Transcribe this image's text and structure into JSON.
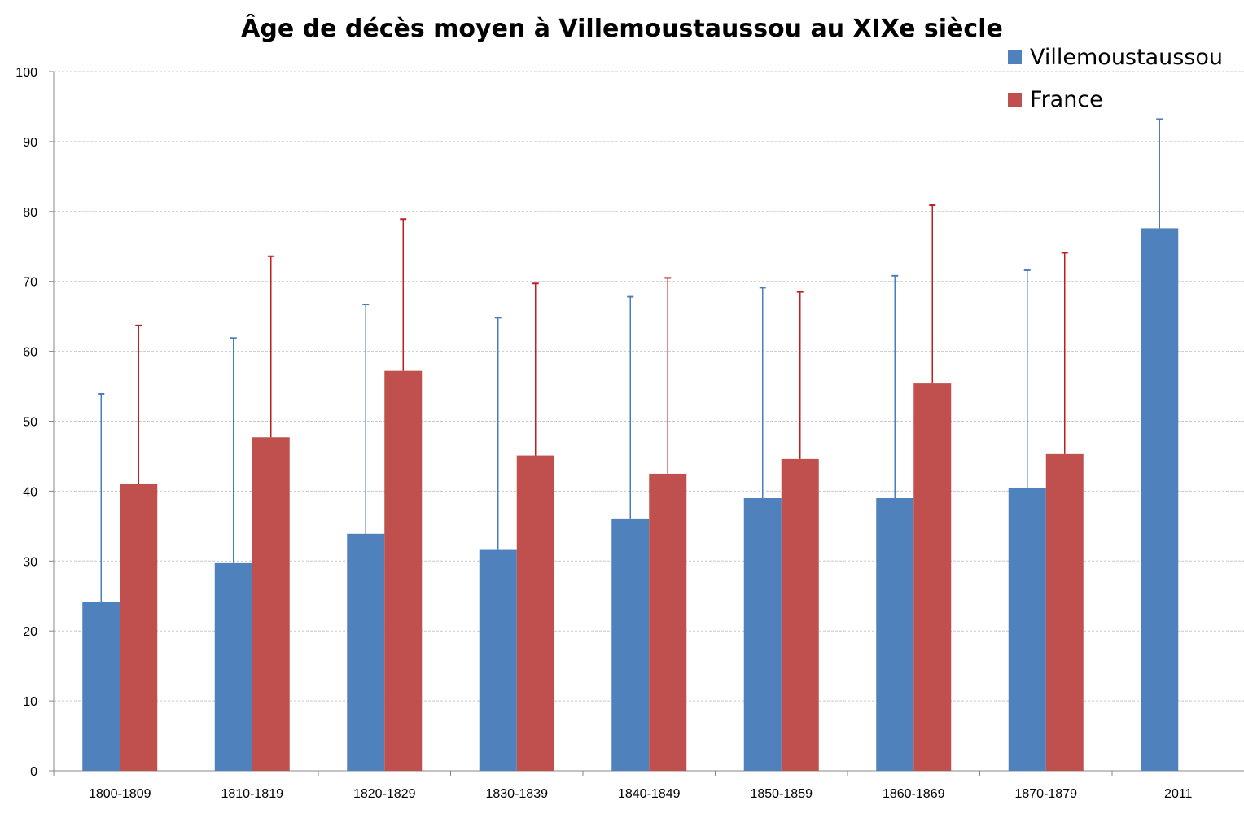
{
  "chart_data": {
    "type": "bar",
    "title": "Âge de décès moyen à Villemoustaussou au XIXe siècle",
    "xlabel": "",
    "ylabel": "",
    "categories": [
      "1800-1809",
      "1810-1819",
      "1820-1829",
      "1830-1839",
      "1840-1849",
      "1850-1859",
      "1860-1869",
      "1870-1879",
      "2011"
    ],
    "ylim": [
      0,
      100
    ],
    "yticks": [
      0,
      10,
      20,
      30,
      40,
      50,
      60,
      70,
      80,
      90,
      100
    ],
    "grid": true,
    "legend_position": "top-right",
    "series": [
      {
        "name": "Villemoustaussou",
        "color": "#4f81bd",
        "values": [
          24.2,
          29.7,
          33.9,
          31.6,
          36.1,
          39.0,
          39.0,
          40.4,
          77.6
        ],
        "error_plus": [
          29.7,
          32.2,
          32.8,
          33.2,
          31.7,
          30.1,
          31.8,
          31.2,
          15.6
        ]
      },
      {
        "name": "France",
        "color": "#c0504d",
        "values": [
          41.1,
          47.7,
          57.2,
          45.1,
          42.5,
          44.6,
          55.4,
          45.3,
          null
        ],
        "error_plus": [
          22.6,
          25.9,
          21.7,
          24.6,
          28.0,
          23.9,
          25.5,
          28.8,
          null
        ]
      }
    ]
  }
}
